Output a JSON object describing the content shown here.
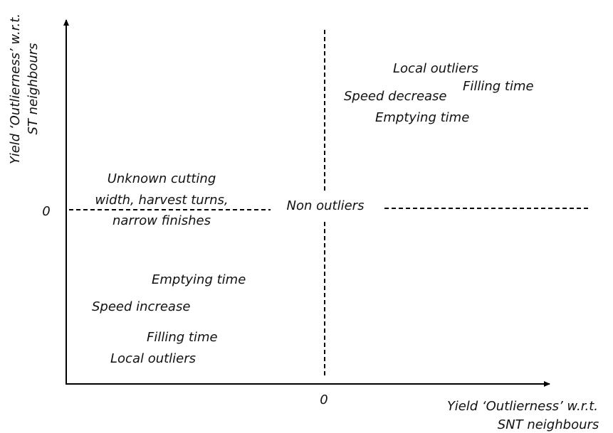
{
  "axes": {
    "y_label": [
      "Yield ‘Outlierness’ w.r.t.",
      "ST neighbours"
    ],
    "x_label": [
      "Yield ‘Outlierness’ w.r.t.",
      "SNT neighbours"
    ],
    "y_origin": "0",
    "x_origin": "0"
  },
  "regions": {
    "center": "Non outliers",
    "upper_right": [
      "Local outliers",
      "Filling time",
      "Speed decrease",
      "Emptying time"
    ],
    "left_middle": [
      "Unknown cutting",
      "width, harvest turns,",
      "narrow finishes"
    ],
    "lower_left": [
      "Emptying time",
      "Speed increase",
      "Filling time",
      "Local outliers"
    ]
  }
}
